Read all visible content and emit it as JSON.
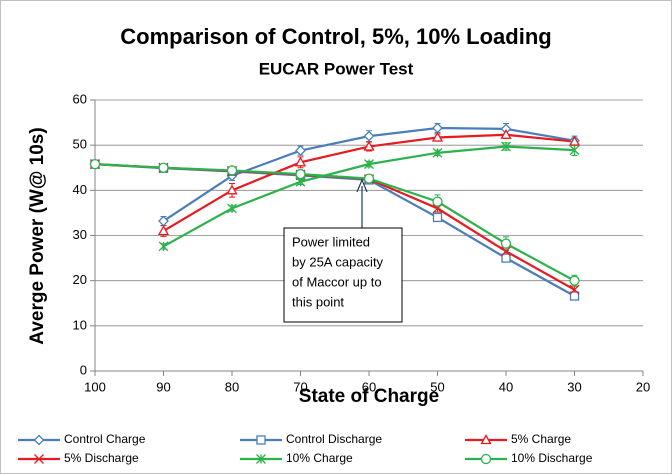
{
  "chart_data": {
    "type": "line",
    "title": "Comparison of Control, 5%, 10% Loading",
    "subtitle": "EUCAR Power Test",
    "x_label": "State of Charge",
    "y_label": "Averge Power (W@ 10s)",
    "x": [
      100,
      90,
      80,
      70,
      60,
      50,
      40,
      30
    ],
    "xlim": [
      100,
      20
    ],
    "xticks": [
      100,
      90,
      80,
      70,
      60,
      50,
      40,
      30,
      20
    ],
    "ylim": [
      0,
      60
    ],
    "yticks": [
      0,
      10,
      20,
      30,
      40,
      50,
      60
    ],
    "grid": true,
    "series": [
      {
        "name": "Control Charge",
        "color": "#4a7ebb",
        "marker": "diamond",
        "values": [
          null,
          33.2,
          43.2,
          48.8,
          52.0,
          53.8,
          53.6,
          51.0
        ],
        "errors": [
          null,
          1.0,
          1.0,
          1.0,
          1.2,
          1.0,
          1.2,
          1.0
        ]
      },
      {
        "name": "Control Discharge",
        "color": "#4a7ebb",
        "marker": "square",
        "values": [
          45.8,
          44.9,
          44.2,
          43.3,
          42.3,
          34.0,
          25.0,
          16.6
        ],
        "errors": [
          0.5,
          0.5,
          0.5,
          0.5,
          0.5,
          0.8,
          0.8,
          0.8
        ]
      },
      {
        "name": "5% Charge",
        "color": "#e8191f",
        "marker": "triangle",
        "values": [
          null,
          31.0,
          40.0,
          46.2,
          49.7,
          51.7,
          52.3,
          50.8
        ],
        "errors": [
          null,
          1.2,
          1.5,
          1.2,
          1.0,
          0.8,
          0.8,
          0.8
        ]
      },
      {
        "name": "5% Discharge",
        "color": "#e8191f",
        "marker": "x",
        "values": [
          45.8,
          45.0,
          44.3,
          43.5,
          42.5,
          36.0,
          26.5,
          18.0
        ],
        "errors": [
          0.5,
          0.5,
          0.5,
          0.5,
          0.5,
          0.8,
          0.8,
          0.8
        ]
      },
      {
        "name": "10% Charge",
        "color": "#2cb24a",
        "marker": "star",
        "values": [
          null,
          27.6,
          36.0,
          41.9,
          45.8,
          48.3,
          49.7,
          48.9
        ],
        "errors": [
          null,
          0.6,
          0.6,
          0.6,
          0.6,
          0.6,
          0.8,
          1.2
        ]
      },
      {
        "name": "10% Discharge",
        "color": "#2cb24a",
        "marker": "circle",
        "values": [
          45.8,
          45.0,
          44.4,
          43.6,
          42.6,
          37.5,
          28.2,
          20.0
        ],
        "errors": [
          0.5,
          0.5,
          0.5,
          0.5,
          0.5,
          1.5,
          1.5,
          1.2
        ]
      }
    ],
    "annotation": [
      "Power limited",
      "by 25A capacity",
      "of Maccor up to",
      "this point"
    ]
  }
}
